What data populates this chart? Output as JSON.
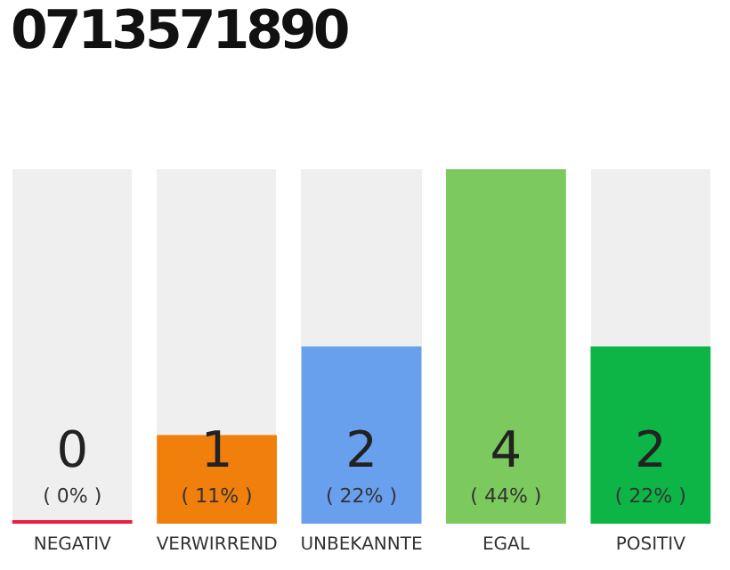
{
  "chart_data": {
    "type": "bar",
    "title": "0713571890",
    "categories": [
      "NEGATIV",
      "VERWIRREND",
      "UNBEKANNTE",
      "EGAL",
      "POSITIV"
    ],
    "values": [
      0,
      1,
      2,
      4,
      2
    ],
    "colors": [
      "#e8203a",
      "#f07f0c",
      "#68a0ee",
      "#7cc95e",
      "#0cb545"
    ],
    "annotations": [
      "( 0% )",
      "( 11% )",
      "( 22% )",
      "( 44% )",
      "( 22% )"
    ],
    "data_labels": true,
    "grid": false,
    "legend": false
  }
}
